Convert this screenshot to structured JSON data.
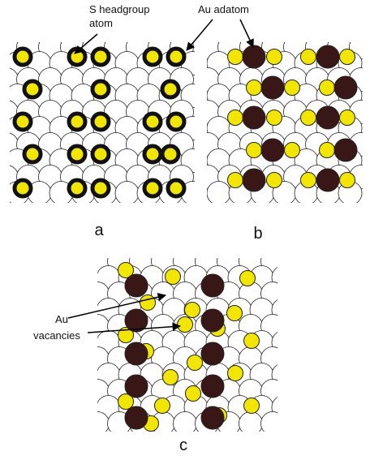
{
  "annotations": {
    "s_headgroup": [
      "S headgroup",
      "atom"
    ],
    "au_adatom": "Au adatom",
    "au_vacancies": [
      "Au",
      "vacancies"
    ]
  },
  "panel_labels": [
    "a",
    "b",
    "c"
  ]
}
